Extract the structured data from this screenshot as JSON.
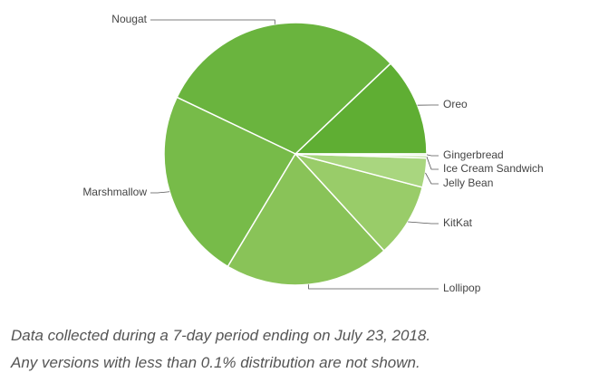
{
  "chart_data": {
    "type": "pie",
    "categories": [
      "Oreo",
      "Nougat",
      "Marshmallow",
      "Lollipop",
      "KitKat",
      "Jelly Bean",
      "Ice Cream Sandwich",
      "Gingerbread"
    ],
    "values": [
      12.1,
      30.8,
      23.5,
      20.4,
      9.1,
      3.6,
      0.3,
      0.2
    ],
    "colors": [
      "#5fae33",
      "#6ab43e",
      "#77bb49",
      "#89c358",
      "#99cc69",
      "#a9d67f",
      "#b5dc8f",
      "#c2e3a2"
    ],
    "notes": [
      "Data collected during a 7-day period ending on July 23, 2018.",
      "Any versions with less than 0.1% distribution are not shown."
    ]
  }
}
